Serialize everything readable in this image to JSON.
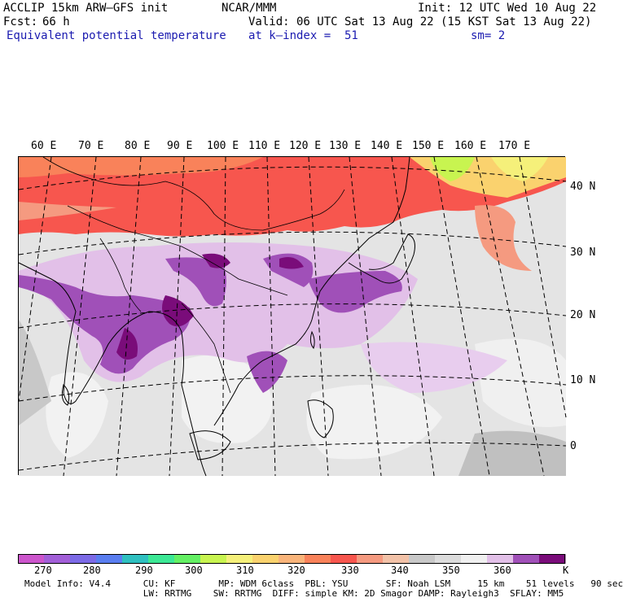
{
  "header": {
    "model": "ACCLIP 15km ARW–GFS init",
    "org": "NCAR/MMM",
    "init": "Init: 12 UTC Wed 10 Aug 22",
    "fcst_label": "Fcst:",
    "fcst_value": "66 h",
    "valid": "Valid: 06 UTC Sat 13 Aug 22 (15 KST Sat 13 Aug 22)",
    "field": "Equivalent potential temperature",
    "level": "at k–index =  51",
    "smooth": "sm= 2"
  },
  "map": {
    "lon_labels": [
      "60 E",
      "70 E",
      "80 E",
      "90 E",
      "100 E",
      "110 E",
      "120 E",
      "130 E",
      "140 E",
      "150 E",
      "160 E",
      "170 E"
    ],
    "lat_labels": [
      "40 N",
      "30 N",
      "20 N",
      "10 N",
      "0"
    ]
  },
  "colorbar": {
    "unit": "K",
    "tick_labels": [
      "270",
      "280",
      "290",
      "300",
      "310",
      "320",
      "330",
      "340",
      "350",
      "360"
    ],
    "colors": [
      "#cc55cc",
      "#a25fd8",
      "#7c6ae6",
      "#5a7ef0",
      "#2fc0c0",
      "#3ce895",
      "#64f064",
      "#c8f450",
      "#f5f07a",
      "#fad26e",
      "#f9b47a",
      "#f9825a",
      "#f7564e",
      "#f59a80",
      "#f2c2a8",
      "#c8c8c8",
      "#dcdcdc",
      "#f0f0f0",
      "#e2c0e8",
      "#a050b8",
      "#7a0c7a"
    ]
  },
  "model_info": {
    "line1": "Model Info: V4.4      CU: KF        MP: WDM 6class  PBL: YSU       SF: Noah LSM     15 km    51 levels   90 sec",
    "line2": "                      LW: RRTMG    SW: RRTMG  DIFF: simple KM: 2D Smagor DAMP: Rayleigh3  SFLAY: MM5"
  }
}
